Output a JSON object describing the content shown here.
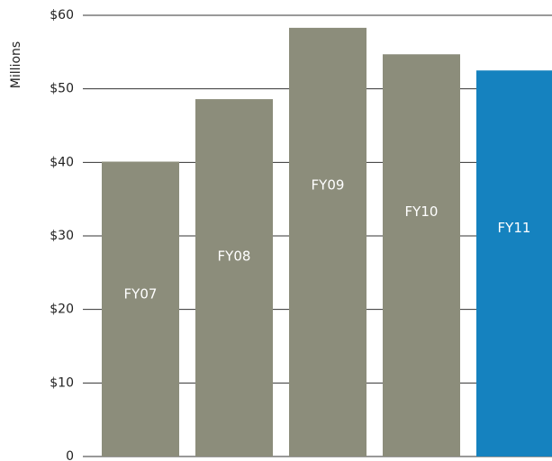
{
  "chart_data": {
    "type": "bar",
    "ylabel": "Millions",
    "categories": [
      "FY07",
      "FY08",
      "FY09",
      "FY10",
      "FY11"
    ],
    "values": [
      40.1,
      48.6,
      58.3,
      54.7,
      52.5
    ],
    "colors": [
      "#8c8d7b",
      "#8c8d7b",
      "#8c8d7b",
      "#8c8d7b",
      "#1582bf"
    ],
    "ylim": [
      0,
      60
    ],
    "yticks": [
      0,
      {
        "value": 10,
        "label": "$10"
      },
      {
        "value": 20,
        "label": "$20"
      },
      {
        "value": 30,
        "label": "$30"
      },
      {
        "value": 40,
        "label": "$40"
      },
      {
        "value": 50,
        "label": "$50"
      },
      {
        "value": 60,
        "label": "$60"
      }
    ],
    "grid": true
  }
}
